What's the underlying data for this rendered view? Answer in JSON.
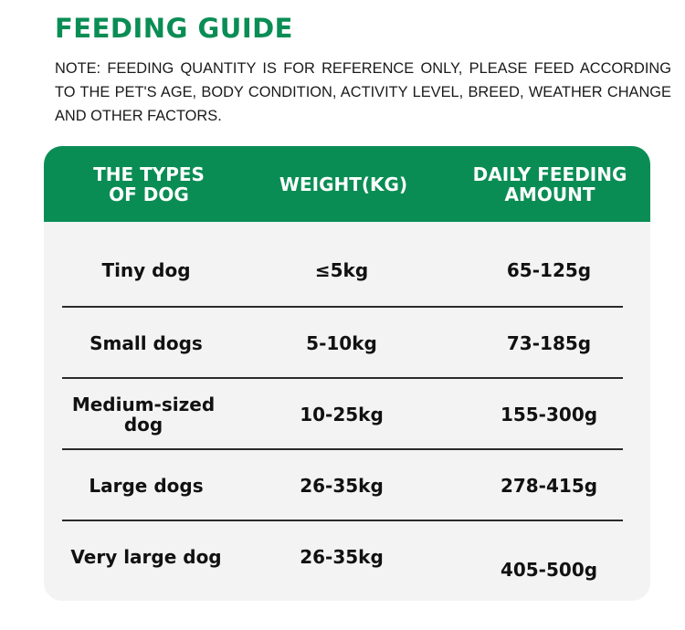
{
  "title": "FEEDING GUIDE",
  "note": "NOTE: FEEDING QUANTITY IS FOR REFERENCE ONLY, PLEASE FEED ACCORDING TO THE PET'S AGE, BODY CONDITION, ACTIVITY LEVEL, BREED, WEATHER CHANGE AND OTHER FACTORS.",
  "table": {
    "headers": {
      "type_line1": "THE TYPES",
      "type_line2": "OF DOG",
      "weight": "WEIGHT(KG)",
      "amount_line1": "DAILY FEEDING",
      "amount_line2": "AMOUNT"
    },
    "rows": [
      {
        "type": "Tiny dog",
        "weight": "≤5kg",
        "amount": "65-125g"
      },
      {
        "type": "Small dogs",
        "weight": "5-10kg",
        "amount": "73-185g"
      },
      {
        "type": "Medium-sized dog",
        "weight": "10-25kg",
        "amount": "155-300g"
      },
      {
        "type": "Large dogs",
        "weight": "26-35kg",
        "amount": "278-415g"
      },
      {
        "type": "Very large dog",
        "weight": "26-35kg",
        "amount": "405-500g"
      }
    ]
  },
  "colors": {
    "accent": "#0a8d54",
    "table_background": "#f3f3f3",
    "text": "#111111"
  }
}
